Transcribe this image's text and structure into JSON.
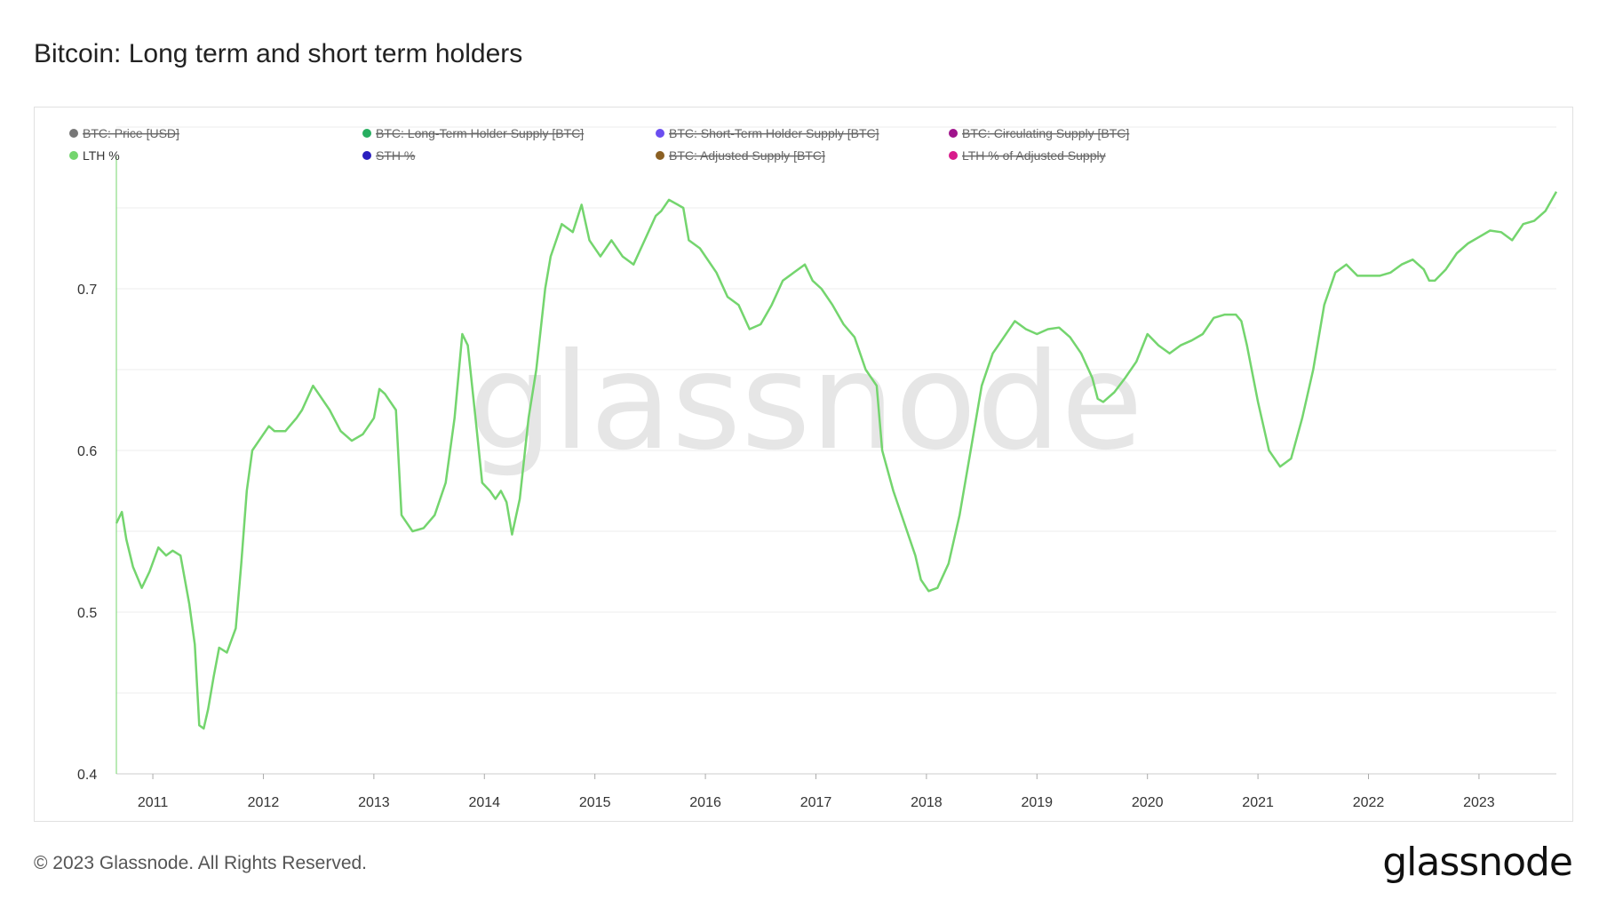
{
  "title": "Bitcoin: Long term and short term holders",
  "footer": {
    "copyright": "© 2023 Glassnode. All Rights Reserved.",
    "logo": "glassnode"
  },
  "watermark": "glassnode",
  "chart_data": {
    "type": "line",
    "title": "Bitcoin: Long term and short term holders",
    "xlabel": "",
    "ylabel": "",
    "xlim": [
      2010.67,
      2023.7
    ],
    "ylim": [
      0.4,
      0.8
    ],
    "grid": true,
    "legend_position": "top-left",
    "x_ticks": [
      "2011",
      "2012",
      "2013",
      "2014",
      "2015",
      "2016",
      "2017",
      "2018",
      "2019",
      "2020",
      "2021",
      "2022",
      "2023"
    ],
    "y_ticks": [
      "0.4",
      "0.5",
      "0.6",
      "0.7"
    ],
    "legend": [
      {
        "label": "BTC: Price [USD]",
        "color": "#777777",
        "active": false
      },
      {
        "label": "BTC: Long-Term Holder Supply [BTC]",
        "color": "#27ae60",
        "active": false
      },
      {
        "label": "BTC: Short-Term Holder Supply [BTC]",
        "color": "#6b4ef0",
        "active": false
      },
      {
        "label": "BTC: Circulating Supply [BTC]",
        "color": "#a0148c",
        "active": false
      },
      {
        "label": "LTH %",
        "color": "#74d56e",
        "active": true
      },
      {
        "label": "STH %",
        "color": "#2a1fbf",
        "active": false
      },
      {
        "label": "BTC: Adjusted Supply [BTC]",
        "color": "#8b6023",
        "active": false
      },
      {
        "label": "LTH % of Adjusted Supply",
        "color": "#d81b8c",
        "active": false
      }
    ],
    "series": [
      {
        "name": "LTH %",
        "color": "#74d56e",
        "x": [
          2010.67,
          2010.72,
          2010.76,
          2010.82,
          2010.9,
          2010.97,
          2011.05,
          2011.12,
          2011.18,
          2011.25,
          2011.33,
          2011.38,
          2011.42,
          2011.46,
          2011.5,
          2011.55,
          2011.6,
          2011.67,
          2011.75,
          2011.8,
          2011.85,
          2011.9,
          2011.95,
          2012.05,
          2012.1,
          2012.2,
          2012.3,
          2012.35,
          2012.45,
          2012.5,
          2012.6,
          2012.7,
          2012.8,
          2012.9,
          2013.0,
          2013.05,
          2013.1,
          2013.15,
          2013.2,
          2013.25,
          2013.3,
          2013.35,
          2013.45,
          2013.55,
          2013.65,
          2013.73,
          2013.8,
          2013.85,
          2013.92,
          2013.98,
          2014.05,
          2014.1,
          2014.15,
          2014.2,
          2014.25,
          2014.32,
          2014.4,
          2014.47,
          2014.55,
          2014.6,
          2014.7,
          2014.8,
          2014.88,
          2014.95,
          2015.05,
          2015.15,
          2015.25,
          2015.35,
          2015.45,
          2015.55,
          2015.6,
          2015.67,
          2015.75,
          2015.8,
          2015.85,
          2015.95,
          2016.1,
          2016.2,
          2016.3,
          2016.4,
          2016.5,
          2016.6,
          2016.7,
          2016.8,
          2016.9,
          2016.97,
          2017.05,
          2017.15,
          2017.25,
          2017.35,
          2017.45,
          2017.55,
          2017.6,
          2017.7,
          2017.8,
          2017.9,
          2017.95,
          2018.02,
          2018.1,
          2018.2,
          2018.3,
          2018.4,
          2018.5,
          2018.6,
          2018.7,
          2018.8,
          2018.9,
          2019.0,
          2019.1,
          2019.2,
          2019.3,
          2019.4,
          2019.5,
          2019.55,
          2019.6,
          2019.7,
          2019.8,
          2019.9,
          2020.0,
          2020.1,
          2020.2,
          2020.3,
          2020.4,
          2020.5,
          2020.6,
          2020.7,
          2020.8,
          2020.85,
          2020.9,
          2021.0,
          2021.1,
          2021.2,
          2021.3,
          2021.4,
          2021.5,
          2021.6,
          2021.7,
          2021.8,
          2021.9,
          2022.0,
          2022.1,
          2022.2,
          2022.3,
          2022.4,
          2022.5,
          2022.55,
          2022.6,
          2022.7,
          2022.8,
          2022.9,
          2023.0,
          2023.1,
          2023.2,
          2023.3,
          2023.4,
          2023.5,
          2023.6,
          2023.7
        ],
        "y": [
          0.555,
          0.562,
          0.545,
          0.528,
          0.515,
          0.525,
          0.54,
          0.535,
          0.538,
          0.535,
          0.505,
          0.48,
          0.43,
          0.428,
          0.44,
          0.46,
          0.478,
          0.475,
          0.49,
          0.53,
          0.575,
          0.6,
          0.605,
          0.615,
          0.612,
          0.612,
          0.62,
          0.625,
          0.64,
          0.635,
          0.625,
          0.612,
          0.606,
          0.61,
          0.62,
          0.638,
          0.635,
          0.63,
          0.625,
          0.56,
          0.555,
          0.55,
          0.552,
          0.56,
          0.58,
          0.62,
          0.672,
          0.665,
          0.62,
          0.58,
          0.575,
          0.57,
          0.575,
          0.568,
          0.548,
          0.57,
          0.62,
          0.65,
          0.7,
          0.72,
          0.74,
          0.735,
          0.752,
          0.73,
          0.72,
          0.73,
          0.72,
          0.715,
          0.73,
          0.745,
          0.748,
          0.755,
          0.752,
          0.75,
          0.73,
          0.725,
          0.71,
          0.695,
          0.69,
          0.675,
          0.678,
          0.69,
          0.705,
          0.71,
          0.715,
          0.705,
          0.7,
          0.69,
          0.678,
          0.67,
          0.65,
          0.64,
          0.6,
          0.575,
          0.555,
          0.535,
          0.52,
          0.513,
          0.515,
          0.53,
          0.56,
          0.6,
          0.64,
          0.66,
          0.67,
          0.68,
          0.675,
          0.672,
          0.675,
          0.676,
          0.67,
          0.66,
          0.645,
          0.632,
          0.63,
          0.636,
          0.645,
          0.655,
          0.672,
          0.665,
          0.66,
          0.665,
          0.668,
          0.672,
          0.682,
          0.684,
          0.684,
          0.68,
          0.665,
          0.63,
          0.6,
          0.59,
          0.595,
          0.62,
          0.65,
          0.69,
          0.71,
          0.715,
          0.708,
          0.708,
          0.708,
          0.71,
          0.715,
          0.718,
          0.712,
          0.705,
          0.705,
          0.712,
          0.722,
          0.728,
          0.732,
          0.736,
          0.735,
          0.73,
          0.74,
          0.742,
          0.748,
          0.76
        ]
      }
    ]
  }
}
